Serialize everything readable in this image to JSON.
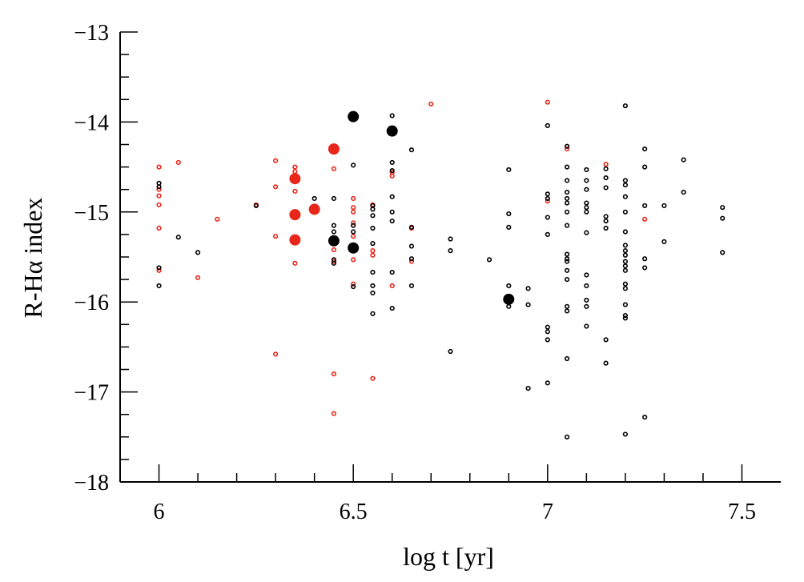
{
  "chart_data": {
    "type": "scatter",
    "title": "",
    "xlabel": "log t [yr]",
    "ylabel": "R-Hα index",
    "xlim": [
      5.9,
      7.6
    ],
    "ylim": [
      -18,
      -13
    ],
    "y_inverted": true,
    "xticks": [
      6,
      6.5,
      7,
      7.5
    ],
    "xtick_labels": [
      "6",
      "6.5",
      "7",
      "7.5"
    ],
    "yticks": [
      -13,
      -14,
      -15,
      -16,
      -17,
      -18
    ],
    "ytick_labels": [
      "−13",
      "−14",
      "−15",
      "−16",
      "−17",
      "−18"
    ],
    "grid": false,
    "legend": null,
    "series": [
      {
        "color": "#e8261a",
        "marker": "open-circle-small",
        "points": [
          [
            6.0,
            -14.5
          ],
          [
            6.0,
            -14.75
          ],
          [
            6.0,
            -14.82
          ],
          [
            6.0,
            -14.92
          ],
          [
            6.0,
            -15.18
          ],
          [
            6.0,
            -15.65
          ],
          [
            6.05,
            -14.45
          ],
          [
            6.1,
            -15.73
          ],
          [
            6.15,
            -15.08
          ],
          [
            6.25,
            -14.92
          ],
          [
            6.3,
            -14.43
          ],
          [
            6.3,
            -14.72
          ],
          [
            6.3,
            -15.27
          ],
          [
            6.3,
            -16.58
          ],
          [
            6.35,
            -14.5
          ],
          [
            6.35,
            -14.55
          ],
          [
            6.35,
            -14.65
          ],
          [
            6.35,
            -14.77
          ],
          [
            6.35,
            -15.57
          ],
          [
            6.45,
            -14.52
          ],
          [
            6.45,
            -15.42
          ],
          [
            6.45,
            -15.55
          ],
          [
            6.45,
            -16.8
          ],
          [
            6.45,
            -17.24
          ],
          [
            6.5,
            -14.85
          ],
          [
            6.5,
            -14.95
          ],
          [
            6.5,
            -15.0
          ],
          [
            6.5,
            -15.12
          ],
          [
            6.5,
            -15.27
          ],
          [
            6.5,
            -15.37
          ],
          [
            6.5,
            -15.53
          ],
          [
            6.5,
            -15.8
          ],
          [
            6.55,
            -14.92
          ],
          [
            6.55,
            -15.43
          ],
          [
            6.55,
            -15.48
          ],
          [
            6.55,
            -16.85
          ],
          [
            6.6,
            -14.56
          ],
          [
            6.6,
            -14.6
          ],
          [
            6.6,
            -15.82
          ],
          [
            6.65,
            -15.18
          ],
          [
            6.65,
            -15.55
          ],
          [
            6.7,
            -13.8
          ],
          [
            7.0,
            -13.78
          ],
          [
            7.0,
            -14.88
          ],
          [
            7.05,
            -14.3
          ],
          [
            7.15,
            -14.47
          ],
          [
            7.25,
            -15.08
          ]
        ]
      },
      {
        "color": "#e8261a",
        "marker": "filled-circle-large",
        "points": [
          [
            6.35,
            -14.63
          ],
          [
            6.35,
            -15.03
          ],
          [
            6.35,
            -15.31
          ],
          [
            6.4,
            -14.97
          ],
          [
            6.45,
            -14.3
          ]
        ]
      },
      {
        "color": "#000000",
        "marker": "open-circle-small",
        "points": [
          [
            6.0,
            -14.68
          ],
          [
            6.0,
            -14.72
          ],
          [
            6.0,
            -15.62
          ],
          [
            6.0,
            -15.82
          ],
          [
            6.05,
            -15.28
          ],
          [
            6.1,
            -15.45
          ],
          [
            6.25,
            -14.93
          ],
          [
            6.4,
            -14.85
          ],
          [
            6.45,
            -14.85
          ],
          [
            6.45,
            -15.15
          ],
          [
            6.45,
            -15.22
          ],
          [
            6.45,
            -15.53
          ],
          [
            6.45,
            -15.57
          ],
          [
            6.5,
            -14.48
          ],
          [
            6.5,
            -15.15
          ],
          [
            6.5,
            -15.22
          ],
          [
            6.5,
            -15.83
          ],
          [
            6.55,
            -14.93
          ],
          [
            6.55,
            -14.97
          ],
          [
            6.55,
            -15.04
          ],
          [
            6.55,
            -15.18
          ],
          [
            6.55,
            -15.35
          ],
          [
            6.55,
            -15.67
          ],
          [
            6.55,
            -15.82
          ],
          [
            6.55,
            -15.9
          ],
          [
            6.55,
            -16.13
          ],
          [
            6.6,
            -13.93
          ],
          [
            6.6,
            -14.45
          ],
          [
            6.6,
            -14.54
          ],
          [
            6.6,
            -14.83
          ],
          [
            6.6,
            -15.0
          ],
          [
            6.6,
            -15.1
          ],
          [
            6.6,
            -15.67
          ],
          [
            6.6,
            -16.07
          ],
          [
            6.65,
            -14.31
          ],
          [
            6.65,
            -15.17
          ],
          [
            6.65,
            -15.38
          ],
          [
            6.65,
            -15.52
          ],
          [
            6.65,
            -15.82
          ],
          [
            6.75,
            -15.3
          ],
          [
            6.75,
            -15.43
          ],
          [
            6.75,
            -16.55
          ],
          [
            6.85,
            -15.53
          ],
          [
            6.9,
            -14.53
          ],
          [
            6.9,
            -15.02
          ],
          [
            6.9,
            -15.17
          ],
          [
            6.9,
            -15.82
          ],
          [
            6.9,
            -16.05
          ],
          [
            6.95,
            -15.85
          ],
          [
            6.95,
            -16.03
          ],
          [
            6.95,
            -16.96
          ],
          [
            7.0,
            -14.04
          ],
          [
            7.0,
            -14.8
          ],
          [
            7.0,
            -14.85
          ],
          [
            7.0,
            -15.06
          ],
          [
            7.0,
            -15.25
          ],
          [
            7.0,
            -16.28
          ],
          [
            7.0,
            -16.33
          ],
          [
            7.0,
            -16.42
          ],
          [
            7.0,
            -16.9
          ],
          [
            7.05,
            -14.27
          ],
          [
            7.05,
            -14.5
          ],
          [
            7.05,
            -14.65
          ],
          [
            7.05,
            -14.78
          ],
          [
            7.05,
            -14.85
          ],
          [
            7.05,
            -14.9
          ],
          [
            7.05,
            -15.0
          ],
          [
            7.05,
            -15.15
          ],
          [
            7.05,
            -15.47
          ],
          [
            7.05,
            -15.52
          ],
          [
            7.05,
            -15.55
          ],
          [
            7.05,
            -15.65
          ],
          [
            7.05,
            -15.75
          ],
          [
            7.05,
            -16.05
          ],
          [
            7.05,
            -16.1
          ],
          [
            7.05,
            -16.63
          ],
          [
            7.05,
            -17.5
          ],
          [
            7.1,
            -14.53
          ],
          [
            7.1,
            -14.65
          ],
          [
            7.1,
            -14.75
          ],
          [
            7.1,
            -14.9
          ],
          [
            7.1,
            -14.95
          ],
          [
            7.1,
            -15.0
          ],
          [
            7.1,
            -15.23
          ],
          [
            7.1,
            -15.7
          ],
          [
            7.1,
            -15.82
          ],
          [
            7.1,
            -15.98
          ],
          [
            7.1,
            -16.05
          ],
          [
            7.1,
            -16.27
          ],
          [
            7.15,
            -14.52
          ],
          [
            7.15,
            -14.62
          ],
          [
            7.15,
            -14.73
          ],
          [
            7.15,
            -15.05
          ],
          [
            7.15,
            -15.1
          ],
          [
            7.15,
            -15.18
          ],
          [
            7.15,
            -16.42
          ],
          [
            7.15,
            -16.68
          ],
          [
            7.2,
            -13.82
          ],
          [
            7.2,
            -14.65
          ],
          [
            7.2,
            -14.7
          ],
          [
            7.2,
            -14.83
          ],
          [
            7.2,
            -15.0
          ],
          [
            7.2,
            -15.22
          ],
          [
            7.2,
            -15.37
          ],
          [
            7.2,
            -15.43
          ],
          [
            7.2,
            -15.48
          ],
          [
            7.2,
            -15.55
          ],
          [
            7.2,
            -15.6
          ],
          [
            7.2,
            -15.65
          ],
          [
            7.2,
            -15.8
          ],
          [
            7.2,
            -15.85
          ],
          [
            7.2,
            -16.03
          ],
          [
            7.2,
            -16.15
          ],
          [
            7.2,
            -16.18
          ],
          [
            7.2,
            -17.47
          ],
          [
            7.25,
            -14.3
          ],
          [
            7.25,
            -14.5
          ],
          [
            7.25,
            -14.93
          ],
          [
            7.25,
            -15.52
          ],
          [
            7.25,
            -15.62
          ],
          [
            7.25,
            -17.28
          ],
          [
            7.3,
            -14.93
          ],
          [
            7.3,
            -15.33
          ],
          [
            7.35,
            -14.42
          ],
          [
            7.35,
            -14.78
          ],
          [
            7.45,
            -14.95
          ],
          [
            7.45,
            -15.07
          ],
          [
            7.45,
            -15.45
          ]
        ]
      },
      {
        "color": "#000000",
        "marker": "filled-circle-large",
        "points": [
          [
            6.45,
            -15.32
          ],
          [
            6.5,
            -13.94
          ],
          [
            6.5,
            -15.4
          ],
          [
            6.6,
            -14.1
          ],
          [
            6.9,
            -15.97
          ]
        ]
      }
    ]
  }
}
